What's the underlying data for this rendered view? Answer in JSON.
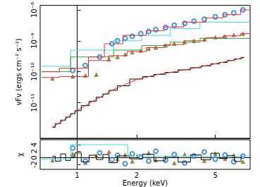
{
  "chart_data": [
    {
      "type": "line",
      "ylabel": "νFν (ergs cm⁻² s⁻¹)",
      "log": true,
      "grid": false,
      "tick_labels": "y",
      "xlim": [
        0.65,
        7.5
      ],
      "xticks": [
        1,
        2,
        5
      ],
      "ylim": [
        7e-13,
        1.4e-08
      ],
      "yticks": [
        {
          "value": 1e-11,
          "label": "10⁻¹¹"
        },
        {
          "value": 1e-10,
          "label": "10⁻¹⁰"
        },
        {
          "value": 1e-09,
          "label": "10⁻⁹"
        },
        {
          "value": 1e-08,
          "label": "10⁻⁸"
        }
      ],
      "series": [
        {
          "type": "line",
          "color": "#000000",
          "line_style": "step",
          "marker": "none",
          "x": [
            0.75,
            0.8,
            0.85,
            0.9,
            0.95,
            1.0,
            1.1,
            1.2,
            1.3,
            1.4,
            1.5,
            1.7,
            2.0,
            2.3,
            2.6,
            3.0,
            3.5,
            4.0,
            4.5,
            5.0,
            5.5,
            6.0,
            6.5,
            7.0
          ],
          "values": [
            1.6e-12,
            2.1e-12,
            2.7e-12,
            3.4e-12,
            4.4e-12,
            5.5e-12,
            8e-12,
            1.1e-11,
            1.5e-11,
            1.9e-11,
            2.5e-11,
            3.5e-11,
            5.8e-11,
            7e-11,
            8.2e-11,
            9.5e-11,
            1.15e-10,
            1.35e-10,
            1.55e-10,
            1.8e-10,
            2e-10,
            2.3e-10,
            2.6e-10,
            2.9e-10
          ]
        },
        {
          "type": "line",
          "color": "#e0302f",
          "line_style": "solid",
          "marker": "none",
          "x": [
            0.75,
            0.85,
            1.0,
            1.2,
            1.5,
            2.0,
            2.6,
            3.0,
            4.0,
            5.0,
            6.0,
            7.0
          ],
          "values": [
            1.6e-12,
            2.6e-12,
            5.5e-12,
            1.1e-11,
            2.5e-11,
            5.6e-11,
            8.3e-11,
            9.6e-11,
            1.35e-10,
            1.8e-10,
            2.3e-10,
            2.85e-10
          ]
        },
        {
          "type": "line",
          "color": "#40d8e0",
          "line_style": "step",
          "marker": "none",
          "x": [
            0.66,
            1.3,
            1.8,
            2.5,
            3.5,
            5.0,
            7.5
          ],
          "values": [
            1.5e-10,
            5e-10,
            1e-09,
            1.5e-09,
            2.5e-09,
            4e-09,
            4e-09
          ]
        },
        {
          "type": "line",
          "color": "#2ca02c",
          "line_style": "step",
          "marker": "none",
          "x": [
            0.66,
            1.3,
            1.8,
            2.5,
            3.5,
            5.0,
            7.5
          ],
          "values": [
            1e-10,
            3e-10,
            5e-10,
            7e-10,
            9e-10,
            1.2e-09,
            1.2e-09
          ]
        },
        {
          "type": "line",
          "color": "#e0302f",
          "line_style": "step",
          "marker": "none",
          "x": [
            0.66,
            1.0,
            1.3,
            1.6,
            2.0,
            2.5,
            3.0,
            4.0,
            5.0,
            6.0,
            7.5
          ],
          "values": [
            6.5e-11,
            7e-11,
            2.3e-10,
            3.3e-10,
            4.5e-10,
            6e-10,
            7.5e-10,
            1e-09,
            1.25e-09,
            1.45e-09,
            1.7e-09
          ]
        },
        {
          "type": "line",
          "color": "#e0302f",
          "line_style": "step",
          "marker": "none",
          "x": [
            0.66,
            1.0,
            1.3,
            1.45,
            2.0,
            2.5,
            3.0,
            4.0,
            5.0,
            6.0,
            7.5
          ],
          "values": [
            1e-10,
            1.3e-10,
            3e-10,
            8e-10,
            1.5e-09,
            2.1e-09,
            2.8e-09,
            4e-09,
            5.5e-09,
            7e-09,
            1e-08
          ]
        },
        {
          "type": "scatter",
          "color": "#8b6a2b",
          "marker": "triangle",
          "line_style": "none",
          "x": [
            0.75,
            0.95,
            1.1,
            1.25,
            1.45,
            1.6,
            1.75,
            1.9,
            2.1,
            2.3,
            2.5,
            2.8,
            3.1,
            3.5,
            3.9,
            4.4,
            5.0,
            5.6,
            6.2,
            6.9
          ],
          "values": [
            6e-11,
            7e-11,
            7.5e-11,
            8e-11,
            2.5e-10,
            3e-10,
            3.6e-10,
            4.2e-10,
            4.8e-10,
            5.5e-10,
            6e-10,
            7e-10,
            8e-10,
            9e-10,
            1e-09,
            1.1e-09,
            1.3e-09,
            1.4e-09,
            1.55e-09,
            1.7e-09
          ]
        },
        {
          "type": "scatter",
          "color": "#1f77d4",
          "marker": "circle-open",
          "line_style": "none",
          "x": [
            0.95,
            1.1,
            1.3,
            1.5,
            1.6,
            1.75,
            1.9,
            2.1,
            2.3,
            2.5,
            2.8,
            3.1,
            3.5,
            3.9,
            4.4,
            5.0,
            5.6,
            6.2,
            6.9
          ],
          "values": [
            1.1e-10,
            1.6e-10,
            3e-10,
            8e-10,
            1e-09,
            1.2e-09,
            1.4e-09,
            1.7e-09,
            2e-09,
            2.3e-09,
            2.7e-09,
            3.2e-09,
            3.7e-09,
            4.3e-09,
            5e-09,
            6e-09,
            7e-09,
            8e-09,
            1e-08
          ]
        }
      ]
    },
    {
      "type": "line",
      "xlabel": "Energy (keV)",
      "ylabel": "χ",
      "log": "x",
      "grid": false,
      "xlim": [
        0.65,
        7.5
      ],
      "xticks": [
        1,
        2,
        5
      ],
      "ylim": [
        -3.5,
        5.5
      ],
      "yticks": [
        -2,
        0,
        2,
        4
      ],
      "series": [
        {
          "type": "line",
          "color": "#000000",
          "line_style": "step",
          "marker": "none",
          "x": [
            0.75,
            0.8,
            0.85,
            0.9,
            0.95,
            1.0,
            1.1,
            1.2,
            1.3,
            1.4,
            1.5,
            1.7,
            2.0,
            2.3,
            2.6,
            3.0,
            3.5,
            4.0,
            4.5,
            5.0,
            5.5,
            6.0,
            6.5,
            7.0
          ],
          "values": [
            0.5,
            -1,
            1.2,
            -0.8,
            0.3,
            1.5,
            -1.2,
            0.8,
            -0.5,
            1,
            -1.5,
            0.6,
            -0.3,
            1.1,
            -0.9,
            0.4,
            -1.3,
            0.9,
            -0.6,
            1.4,
            -0.2,
            0.7,
            -1.1,
            0.5
          ]
        },
        {
          "type": "line",
          "color": "#40d8e0",
          "line_style": "step",
          "marker": "none",
          "x": [
            0.66,
            1.3,
            2.5,
            7.5
          ],
          "values": [
            -0.5,
            4,
            0.5,
            0.5
          ]
        },
        {
          "type": "scatter",
          "color": "#8b6a2b",
          "marker": "triangle",
          "line_style": "none",
          "x": [
            0.75,
            0.95,
            1.1,
            1.25,
            1.45,
            1.6,
            1.75,
            1.9,
            2.1,
            2.3,
            2.5,
            2.8,
            3.1,
            3.5,
            3.9,
            4.4,
            5.0,
            5.6,
            6.2,
            6.9
          ],
          "values": [
            -0.8,
            1.2,
            -1.5,
            0.6,
            1.8,
            -0.4,
            0.9,
            -1.1,
            0.3,
            1.5,
            -0.7,
            0.2,
            -1.6,
            1,
            0.4,
            -0.9,
            1.3,
            -0.3,
            0.8,
            -1.2
          ]
        },
        {
          "type": "scatter",
          "color": "#1f77d4",
          "marker": "circle-open",
          "line_style": "none",
          "x": [
            0.95,
            1.1,
            1.3,
            1.5,
            1.6,
            1.75,
            1.9,
            2.1,
            2.3,
            2.5,
            2.8,
            3.1,
            3.5,
            3.9,
            4.4,
            5.0,
            5.6,
            6.2,
            6.9
          ],
          "values": [
            3,
            -1,
            1.5,
            -0.5,
            0.8,
            -1.8,
            1.2,
            0.3,
            -1,
            2,
            -0.7,
            1,
            -1.5,
            0.6,
            1.8,
            -0.4,
            0.9,
            -1.2,
            0.5
          ]
        }
      ]
    }
  ]
}
